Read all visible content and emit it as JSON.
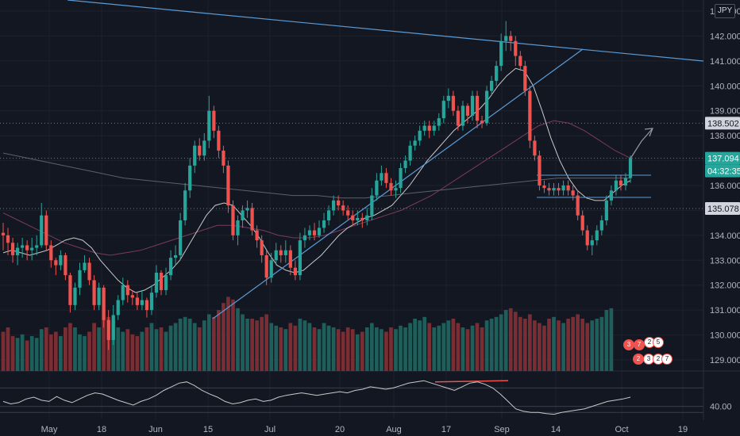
{
  "currency": "JPY",
  "colors": {
    "bg": "#131722",
    "up": "#26a69a",
    "down": "#ef5350",
    "vol_up": "#1f5f5b",
    "vol_down": "#7a2d33",
    "trend": "#5b9bd5",
    "ma_fast": "#c9c9c9",
    "ma_mid": "#7b3b5a",
    "ma_slow": "#5d606b",
    "rsi": "#c9c9c9",
    "grid": "#1e222d"
  },
  "price_axis": {
    "ticks": [
      "143.000",
      "142.000",
      "141.000",
      "140.000",
      "139.000",
      "138.000",
      "137.000",
      "136.000",
      "135.000",
      "134.000",
      "133.000",
      "132.000",
      "131.000",
      "130.000",
      "129.000"
    ],
    "tick_values": [
      143,
      142,
      141,
      140,
      139,
      138,
      137,
      136,
      135,
      134,
      133,
      132,
      131,
      130,
      129
    ]
  },
  "time_axis": [
    "May",
    "18",
    "Jun",
    "15",
    "Jul",
    "20",
    "Aug",
    "17",
    "Sep",
    "14",
    "Oct",
    "19"
  ],
  "price_tags": [
    {
      "label": "138.502",
      "value": 138.502,
      "style": "light"
    },
    {
      "label": "137.094",
      "value": 137.094,
      "style": "green"
    },
    {
      "label": "04:32:35",
      "value": 136.6,
      "style": "green"
    },
    {
      "label": "135.078",
      "value": 135.078,
      "style": "light"
    }
  ],
  "rsi_axis": {
    "label": "40.00",
    "value": 40
  },
  "event_badges": [
    "3",
    "7",
    "2",
    "5",
    "2",
    "3",
    "2",
    "7"
  ],
  "chart_data": {
    "type": "candlestick",
    "symbol_currency": "JPY",
    "ylim": [
      128.5,
      143.5
    ],
    "x_labels": [
      "May",
      "18",
      "Jun",
      "15",
      "Jul",
      "20",
      "Aug",
      "17",
      "Sep",
      "14",
      "Oct",
      "19"
    ],
    "candles": [
      [
        134.1,
        134.0,
        133.4,
        134.5
      ],
      [
        134.0,
        133.7,
        133.2,
        134.3
      ],
      [
        133.7,
        133.2,
        132.9,
        133.9
      ],
      [
        133.2,
        133.5,
        132.8,
        133.7
      ],
      [
        133.5,
        133.6,
        133.1,
        133.9
      ],
      [
        133.6,
        133.4,
        133.0,
        133.8
      ],
      [
        133.4,
        133.5,
        133.0,
        133.9
      ],
      [
        133.5,
        133.6,
        133.2,
        134.0
      ],
      [
        133.6,
        134.8,
        133.5,
        135.3
      ],
      [
        134.8,
        133.6,
        133.4,
        135.0
      ],
      [
        133.6,
        133.0,
        132.7,
        133.8
      ],
      [
        133.0,
        132.8,
        132.4,
        133.1
      ],
      [
        132.8,
        133.2,
        132.6,
        133.4
      ],
      [
        133.2,
        132.4,
        132.2,
        133.3
      ],
      [
        132.4,
        131.2,
        130.9,
        132.5
      ],
      [
        131.2,
        131.9,
        131.0,
        132.1
      ],
      [
        131.9,
        132.6,
        131.6,
        132.9
      ],
      [
        132.6,
        132.9,
        132.5,
        133.2
      ],
      [
        132.9,
        132.2,
        132.0,
        133.1
      ],
      [
        132.2,
        131.2,
        131.0,
        132.4
      ],
      [
        131.2,
        131.9,
        131.0,
        132.1
      ],
      [
        131.9,
        130.6,
        130.3,
        132.0
      ],
      [
        130.6,
        129.8,
        129.4,
        131.0
      ],
      [
        129.8,
        130.8,
        129.6,
        131.2
      ],
      [
        130.8,
        131.4,
        130.6,
        131.6
      ],
      [
        131.4,
        132.0,
        131.2,
        132.3
      ],
      [
        132.0,
        131.6,
        131.3,
        132.2
      ],
      [
        131.6,
        131.5,
        131.2,
        131.8
      ],
      [
        131.5,
        131.2,
        131.0,
        131.7
      ],
      [
        131.2,
        131.4,
        131.0,
        131.8
      ],
      [
        131.4,
        131.0,
        130.7,
        131.5
      ],
      [
        131.0,
        131.7,
        130.8,
        132.0
      ],
      [
        131.7,
        132.5,
        131.5,
        132.8
      ],
      [
        132.5,
        131.8,
        131.6,
        132.6
      ],
      [
        131.8,
        132.4,
        131.6,
        132.7
      ],
      [
        132.4,
        133.1,
        132.2,
        133.4
      ],
      [
        133.1,
        133.2,
        132.8,
        133.6
      ],
      [
        133.2,
        134.6,
        133.0,
        134.9
      ],
      [
        134.6,
        135.8,
        134.4,
        136.1
      ],
      [
        135.8,
        136.8,
        135.5,
        137.1
      ],
      [
        136.8,
        137.6,
        136.5,
        137.8
      ],
      [
        137.6,
        137.2,
        137.0,
        137.9
      ],
      [
        137.2,
        137.8,
        137.0,
        138.1
      ],
      [
        137.8,
        139.0,
        137.5,
        139.6
      ],
      [
        139.0,
        138.2,
        137.9,
        139.2
      ],
      [
        138.2,
        137.4,
        137.1,
        138.4
      ],
      [
        137.4,
        136.8,
        136.5,
        137.6
      ],
      [
        136.8,
        135.2,
        134.9,
        137.0
      ],
      [
        135.2,
        134.0,
        133.8,
        135.4
      ],
      [
        134.0,
        134.6,
        133.6,
        134.8
      ],
      [
        134.6,
        135.0,
        134.3,
        135.2
      ],
      [
        135.0,
        135.1,
        134.7,
        135.4
      ],
      [
        135.1,
        134.2,
        134.0,
        135.3
      ],
      [
        134.2,
        133.8,
        133.5,
        134.4
      ],
      [
        133.8,
        133.2,
        132.9,
        134.0
      ],
      [
        133.2,
        132.3,
        132.0,
        133.4
      ],
      [
        132.3,
        133.0,
        132.1,
        133.3
      ],
      [
        133.0,
        133.4,
        132.8,
        133.7
      ],
      [
        133.4,
        133.2,
        132.9,
        133.6
      ],
      [
        133.2,
        133.4,
        132.9,
        133.8
      ],
      [
        133.4,
        132.7,
        132.4,
        133.6
      ],
      [
        132.7,
        132.4,
        132.2,
        133.0
      ],
      [
        132.4,
        133.8,
        132.2,
        134.1
      ],
      [
        133.8,
        134.0,
        133.5,
        134.3
      ],
      [
        134.0,
        134.2,
        133.8,
        134.4
      ],
      [
        134.2,
        134.0,
        133.8,
        134.5
      ],
      [
        134.0,
        134.3,
        133.9,
        134.6
      ],
      [
        134.3,
        134.6,
        134.1,
        134.9
      ],
      [
        134.6,
        135.0,
        134.4,
        135.2
      ],
      [
        135.0,
        135.4,
        134.8,
        135.6
      ],
      [
        135.4,
        135.2,
        135.0,
        135.6
      ],
      [
        135.2,
        135.0,
        134.8,
        135.4
      ],
      [
        135.0,
        134.8,
        134.6,
        135.2
      ],
      [
        134.8,
        134.6,
        134.4,
        135.0
      ],
      [
        134.6,
        134.7,
        134.4,
        135.0
      ],
      [
        134.7,
        134.6,
        134.3,
        134.9
      ],
      [
        134.6,
        134.8,
        134.4,
        135.1
      ],
      [
        134.8,
        135.6,
        134.6,
        135.9
      ],
      [
        135.6,
        136.2,
        135.4,
        136.5
      ],
      [
        136.2,
        136.5,
        136.0,
        136.8
      ],
      [
        136.5,
        136.1,
        135.9,
        136.7
      ],
      [
        136.1,
        135.8,
        135.6,
        136.3
      ],
      [
        135.8,
        135.9,
        135.5,
        136.2
      ],
      [
        135.9,
        136.7,
        135.7,
        136.9
      ],
      [
        136.7,
        137.0,
        136.5,
        137.2
      ],
      [
        137.0,
        137.6,
        136.8,
        137.8
      ],
      [
        137.6,
        137.8,
        137.4,
        138.0
      ],
      [
        137.8,
        138.2,
        137.6,
        138.4
      ],
      [
        138.2,
        138.4,
        138.0,
        138.6
      ],
      [
        138.4,
        138.2,
        137.9,
        138.6
      ],
      [
        138.2,
        138.4,
        138.0,
        138.6
      ],
      [
        138.4,
        138.7,
        138.2,
        138.9
      ],
      [
        138.7,
        139.4,
        138.5,
        139.6
      ],
      [
        139.4,
        139.6,
        139.1,
        139.9
      ],
      [
        139.6,
        139.0,
        138.8,
        139.8
      ],
      [
        139.0,
        138.4,
        138.2,
        139.2
      ],
      [
        138.4,
        139.2,
        138.2,
        139.4
      ],
      [
        139.2,
        138.8,
        138.5,
        139.3
      ],
      [
        138.8,
        139.6,
        138.6,
        139.8
      ],
      [
        139.6,
        138.6,
        138.3,
        139.8
      ],
      [
        138.6,
        138.5,
        138.3,
        138.8
      ],
      [
        138.5,
        139.8,
        138.4,
        140.0
      ],
      [
        139.8,
        140.2,
        139.6,
        140.4
      ],
      [
        140.2,
        140.8,
        140.0,
        141.0
      ],
      [
        140.8,
        141.8,
        140.6,
        142.1
      ],
      [
        141.8,
        142.0,
        141.4,
        142.6
      ],
      [
        142.0,
        141.8,
        141.4,
        142.2
      ],
      [
        141.8,
        141.2,
        140.8,
        142.0
      ],
      [
        141.2,
        140.8,
        140.6,
        141.4
      ],
      [
        140.8,
        139.8,
        139.6,
        141.0
      ],
      [
        139.8,
        137.8,
        137.5,
        140.0
      ],
      [
        137.8,
        137.2,
        137.0,
        138.0
      ],
      [
        137.2,
        136.0,
        135.8,
        137.4
      ],
      [
        136.0,
        135.9,
        135.7,
        136.2
      ],
      [
        135.9,
        135.8,
        135.6,
        136.1
      ],
      [
        135.8,
        135.9,
        135.6,
        136.1
      ],
      [
        135.9,
        135.8,
        135.6,
        136.1
      ],
      [
        135.8,
        136.0,
        135.6,
        136.2
      ],
      [
        136.0,
        135.8,
        135.6,
        136.2
      ],
      [
        135.8,
        135.6,
        135.4,
        136.0
      ],
      [
        135.6,
        134.8,
        134.6,
        135.8
      ],
      [
        134.8,
        134.2,
        134.0,
        135.0
      ],
      [
        134.2,
        133.6,
        133.4,
        134.4
      ],
      [
        133.6,
        133.8,
        133.2,
        134.0
      ],
      [
        133.8,
        134.2,
        133.6,
        134.4
      ],
      [
        134.2,
        134.6,
        134.0,
        134.8
      ],
      [
        134.6,
        135.4,
        134.4,
        135.6
      ],
      [
        135.4,
        135.8,
        135.2,
        136.0
      ],
      [
        135.8,
        136.2,
        135.6,
        136.4
      ],
      [
        136.2,
        136.0,
        135.8,
        136.4
      ],
      [
        136.0,
        136.3,
        135.8,
        136.5
      ],
      [
        136.3,
        137.1,
        136.1,
        137.2
      ]
    ],
    "volumes": [
      0.45,
      0.5,
      0.4,
      0.38,
      0.42,
      0.35,
      0.4,
      0.38,
      0.48,
      0.5,
      0.42,
      0.45,
      0.4,
      0.5,
      0.55,
      0.5,
      0.42,
      0.4,
      0.45,
      0.55,
      0.5,
      0.6,
      0.62,
      0.58,
      0.5,
      0.45,
      0.48,
      0.42,
      0.4,
      0.45,
      0.5,
      0.55,
      0.48,
      0.5,
      0.45,
      0.52,
      0.55,
      0.6,
      0.62,
      0.6,
      0.55,
      0.5,
      0.58,
      0.65,
      0.62,
      0.7,
      0.78,
      0.85,
      0.82,
      0.72,
      0.65,
      0.6,
      0.6,
      0.58,
      0.62,
      0.65,
      0.55,
      0.52,
      0.5,
      0.48,
      0.55,
      0.52,
      0.6,
      0.58,
      0.55,
      0.5,
      0.48,
      0.55,
      0.52,
      0.5,
      0.48,
      0.45,
      0.5,
      0.48,
      0.42,
      0.45,
      0.5,
      0.55,
      0.5,
      0.48,
      0.45,
      0.5,
      0.48,
      0.52,
      0.5,
      0.55,
      0.6,
      0.58,
      0.62,
      0.55,
      0.5,
      0.52,
      0.55,
      0.58,
      0.6,
      0.55,
      0.5,
      0.48,
      0.52,
      0.55,
      0.5,
      0.58,
      0.6,
      0.62,
      0.65,
      0.7,
      0.72,
      0.68,
      0.62,
      0.6,
      0.65,
      0.58,
      0.55,
      0.52,
      0.6,
      0.62,
      0.58,
      0.55,
      0.6,
      0.62,
      0.65,
      0.6,
      0.55,
      0.58,
      0.6,
      0.62,
      0.7,
      0.72
    ],
    "ma_fast": [
      133.3,
      133.4,
      133.3,
      133.2,
      133.3,
      133.4,
      133.6,
      133.8,
      133.9,
      133.8,
      133.5,
      133.0,
      132.6,
      132.2,
      131.9,
      131.7,
      131.8,
      132.0,
      132.3,
      132.6,
      133.0,
      133.6,
      134.2,
      134.8,
      135.2,
      135.3,
      135.2,
      134.8,
      134.4,
      133.9,
      133.3,
      132.8,
      132.6,
      132.5,
      132.6,
      132.9,
      133.2,
      133.6,
      134.0,
      134.3,
      134.5,
      134.7,
      134.8,
      135.0,
      135.2,
      135.6,
      136.0,
      136.5,
      137.0,
      137.4,
      137.8,
      138.2,
      138.5,
      138.8,
      139.1,
      139.5,
      140.0,
      140.4,
      140.7,
      140.6,
      140.0,
      139.0,
      137.9,
      137.0,
      136.3,
      135.8,
      135.5,
      135.4,
      135.4,
      135.7,
      136.0,
      136.2
    ],
    "ma_mid": [
      134.9,
      134.6,
      134.3,
      134.0,
      133.7,
      133.5,
      133.3,
      133.2,
      133.3,
      133.4,
      133.6,
      133.8,
      134.0,
      134.2,
      134.4,
      134.4,
      134.3,
      134.2,
      134.0,
      133.9,
      133.9,
      134.0,
      134.2,
      134.4,
      134.6,
      134.8,
      135.0,
      135.3,
      135.6,
      136.0,
      136.4,
      136.8,
      137.2,
      137.6,
      138.0,
      138.4,
      138.6,
      138.5,
      138.2,
      137.8,
      137.4,
      137.1
    ],
    "ma_slow": [
      137.3,
      137.1,
      136.9,
      136.7,
      136.5,
      136.3,
      136.2,
      136.1,
      136.0,
      135.9,
      135.8,
      135.7,
      135.6,
      135.6,
      135.5,
      135.5,
      135.6,
      135.7,
      135.8,
      135.9,
      136.0,
      136.1,
      136.2,
      136.3,
      136.3,
      136.3,
      136.3
    ],
    "rsi": [
      48,
      44,
      46,
      52,
      55,
      50,
      48,
      56,
      50,
      46,
      52,
      58,
      62,
      60,
      55,
      50,
      46,
      42,
      48,
      52,
      58,
      66,
      72,
      78,
      80,
      74,
      66,
      60,
      55,
      48,
      44,
      46,
      50,
      52,
      48,
      50,
      55,
      58,
      60,
      62,
      60,
      58,
      60,
      62,
      64,
      62,
      66,
      68,
      72,
      70,
      68,
      70,
      74,
      78,
      80,
      82,
      78,
      74,
      70,
      66,
      72,
      78,
      80,
      76,
      70,
      60,
      48,
      36,
      32,
      30,
      30,
      28,
      27,
      30,
      32,
      34,
      36,
      40,
      44,
      48,
      50,
      52,
      55
    ]
  }
}
